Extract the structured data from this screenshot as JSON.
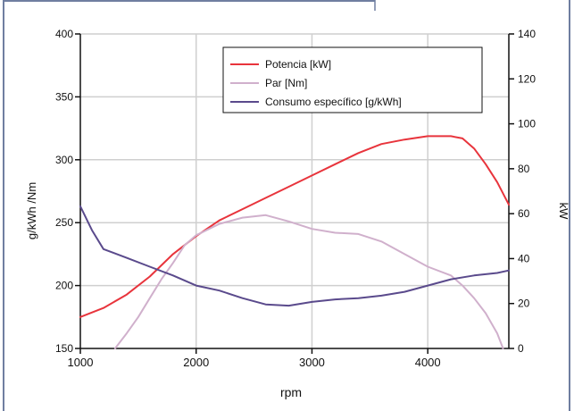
{
  "chart_data": {
    "type": "line",
    "xlabel": "rpm",
    "ylabel_left": "g/kWh /Nm",
    "ylabel_right": "kW",
    "xlim": [
      1000,
      4700
    ],
    "ylim_left": [
      150,
      400
    ],
    "ylim_right": [
      0,
      140
    ],
    "x_ticks": [
      1000,
      2000,
      3000,
      4000
    ],
    "x_tick_labels": [
      "1000",
      "2000",
      "3000",
      "4000"
    ],
    "y_left_ticks": [
      150,
      200,
      250,
      300,
      350,
      400
    ],
    "y_left_tick_labels": [
      "150",
      "200",
      "250",
      "300",
      "350",
      "400"
    ],
    "y_right_ticks": [
      0,
      20,
      40,
      60,
      80,
      100,
      120,
      140
    ],
    "y_right_tick_labels": [
      "0",
      "20",
      "40",
      "60",
      "80",
      "100",
      "120",
      "140"
    ],
    "grid": true,
    "legend_position": "top-right",
    "series": [
      {
        "name": "Potencia [kW]",
        "axis": "right",
        "color": "#e8343c",
        "x": [
          1000,
          1200,
          1400,
          1600,
          1800,
          2000,
          2200,
          2400,
          2600,
          2800,
          3000,
          3200,
          3400,
          3600,
          3800,
          4000,
          4200,
          4300,
          4400,
          4500,
          4600,
          4700
        ],
        "y": [
          14,
          18,
          24,
          32,
          42,
          50,
          57,
          62,
          67,
          72,
          77,
          82,
          87,
          91,
          93,
          94.5,
          94.5,
          93.5,
          89,
          82,
          74,
          64
        ]
      },
      {
        "name": "Par [Nm]",
        "axis": "left",
        "color": "#d0b0cc",
        "x": [
          1300,
          1400,
          1500,
          1600,
          1700,
          1800,
          1900,
          2000,
          2200,
          2400,
          2600,
          2800,
          3000,
          3200,
          3400,
          3600,
          3800,
          4000,
          4200,
          4300,
          4400,
          4500,
          4600,
          4650
        ],
        "y": [
          150,
          162,
          175,
          190,
          205,
          218,
          232,
          240,
          249,
          254,
          256,
          251,
          245,
          242,
          241,
          235,
          225,
          215,
          208,
          200,
          190,
          178,
          162,
          150
        ]
      },
      {
        "name": "Consumo específico [g/kWh]",
        "axis": "left",
        "color": "#5a4a8c",
        "x": [
          1000,
          1100,
          1200,
          1400,
          1600,
          1800,
          2000,
          2200,
          2400,
          2600,
          2800,
          3000,
          3200,
          3400,
          3600,
          3800,
          4000,
          4200,
          4400,
          4600,
          4700
        ],
        "y": [
          263,
          244,
          229,
          222,
          215,
          208,
          200,
          196,
          190,
          185,
          184,
          187,
          189,
          190,
          192,
          195,
          200,
          205,
          208,
          210,
          212
        ]
      }
    ]
  },
  "colors": {
    "frame": "#6f7ea0",
    "grid": "#cfcfcf",
    "axis": "#111111"
  }
}
